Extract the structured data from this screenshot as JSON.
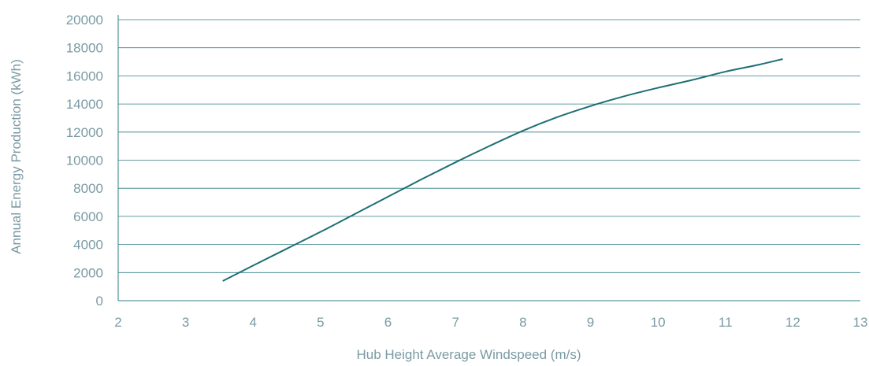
{
  "colors": {
    "text": "#7a9aa4",
    "grid": "#2f7d85",
    "line": "#1d6f75"
  },
  "chart_data": {
    "type": "line",
    "title": "",
    "xlabel": "Hub Height Average Windspeed (m/s)",
    "ylabel": "Annual Energy Production (kWh)",
    "xlim": [
      2,
      13
    ],
    "ylim": [
      0,
      20000
    ],
    "x_ticks": [
      2,
      3,
      4,
      5,
      6,
      7,
      8,
      9,
      10,
      11,
      12,
      13
    ],
    "y_ticks": [
      0,
      2000,
      4000,
      6000,
      8000,
      10000,
      12000,
      14000,
      16000,
      18000,
      20000
    ],
    "grid": "horizontal",
    "series": [
      {
        "x": [
          3.55,
          4.0,
          4.5,
          5.0,
          5.5,
          6.0,
          6.5,
          7.0,
          7.5,
          8.0,
          8.5,
          9.0,
          9.5,
          10.0,
          10.5,
          11.0,
          11.5,
          11.85
        ],
        "y": [
          1400,
          2500,
          3700,
          4900,
          6150,
          7400,
          8650,
          9850,
          11000,
          12100,
          13050,
          13850,
          14550,
          15150,
          15700,
          16300,
          16800,
          17200
        ]
      }
    ]
  }
}
